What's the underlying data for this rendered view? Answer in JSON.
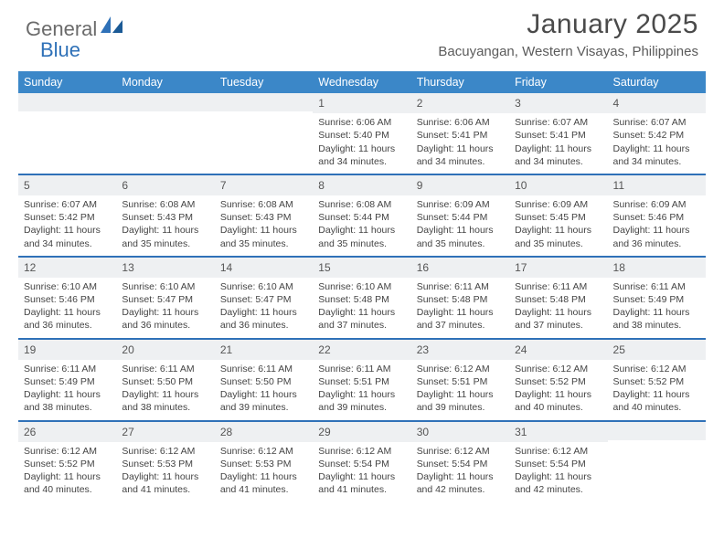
{
  "logo": {
    "part1": "General",
    "part2": "Blue"
  },
  "title": "January 2025",
  "location": "Bacuyangan, Western Visayas, Philippines",
  "colors": {
    "header_band": "#3b87c8",
    "week_divider": "#2f71b8",
    "daynum_band": "#eef0f2",
    "logo_gray": "#6b6b6b",
    "logo_blue": "#2f71b8"
  },
  "dow": [
    "Sunday",
    "Monday",
    "Tuesday",
    "Wednesday",
    "Thursday",
    "Friday",
    "Saturday"
  ],
  "weeks": [
    [
      {
        "n": "",
        "sr": "",
        "ss": "",
        "dl": ""
      },
      {
        "n": "",
        "sr": "",
        "ss": "",
        "dl": ""
      },
      {
        "n": "",
        "sr": "",
        "ss": "",
        "dl": ""
      },
      {
        "n": "1",
        "sr": "Sunrise: 6:06 AM",
        "ss": "Sunset: 5:40 PM",
        "dl": "Daylight: 11 hours and 34 minutes."
      },
      {
        "n": "2",
        "sr": "Sunrise: 6:06 AM",
        "ss": "Sunset: 5:41 PM",
        "dl": "Daylight: 11 hours and 34 minutes."
      },
      {
        "n": "3",
        "sr": "Sunrise: 6:07 AM",
        "ss": "Sunset: 5:41 PM",
        "dl": "Daylight: 11 hours and 34 minutes."
      },
      {
        "n": "4",
        "sr": "Sunrise: 6:07 AM",
        "ss": "Sunset: 5:42 PM",
        "dl": "Daylight: 11 hours and 34 minutes."
      }
    ],
    [
      {
        "n": "5",
        "sr": "Sunrise: 6:07 AM",
        "ss": "Sunset: 5:42 PM",
        "dl": "Daylight: 11 hours and 34 minutes."
      },
      {
        "n": "6",
        "sr": "Sunrise: 6:08 AM",
        "ss": "Sunset: 5:43 PM",
        "dl": "Daylight: 11 hours and 35 minutes."
      },
      {
        "n": "7",
        "sr": "Sunrise: 6:08 AM",
        "ss": "Sunset: 5:43 PM",
        "dl": "Daylight: 11 hours and 35 minutes."
      },
      {
        "n": "8",
        "sr": "Sunrise: 6:08 AM",
        "ss": "Sunset: 5:44 PM",
        "dl": "Daylight: 11 hours and 35 minutes."
      },
      {
        "n": "9",
        "sr": "Sunrise: 6:09 AM",
        "ss": "Sunset: 5:44 PM",
        "dl": "Daylight: 11 hours and 35 minutes."
      },
      {
        "n": "10",
        "sr": "Sunrise: 6:09 AM",
        "ss": "Sunset: 5:45 PM",
        "dl": "Daylight: 11 hours and 35 minutes."
      },
      {
        "n": "11",
        "sr": "Sunrise: 6:09 AM",
        "ss": "Sunset: 5:46 PM",
        "dl": "Daylight: 11 hours and 36 minutes."
      }
    ],
    [
      {
        "n": "12",
        "sr": "Sunrise: 6:10 AM",
        "ss": "Sunset: 5:46 PM",
        "dl": "Daylight: 11 hours and 36 minutes."
      },
      {
        "n": "13",
        "sr": "Sunrise: 6:10 AM",
        "ss": "Sunset: 5:47 PM",
        "dl": "Daylight: 11 hours and 36 minutes."
      },
      {
        "n": "14",
        "sr": "Sunrise: 6:10 AM",
        "ss": "Sunset: 5:47 PM",
        "dl": "Daylight: 11 hours and 36 minutes."
      },
      {
        "n": "15",
        "sr": "Sunrise: 6:10 AM",
        "ss": "Sunset: 5:48 PM",
        "dl": "Daylight: 11 hours and 37 minutes."
      },
      {
        "n": "16",
        "sr": "Sunrise: 6:11 AM",
        "ss": "Sunset: 5:48 PM",
        "dl": "Daylight: 11 hours and 37 minutes."
      },
      {
        "n": "17",
        "sr": "Sunrise: 6:11 AM",
        "ss": "Sunset: 5:48 PM",
        "dl": "Daylight: 11 hours and 37 minutes."
      },
      {
        "n": "18",
        "sr": "Sunrise: 6:11 AM",
        "ss": "Sunset: 5:49 PM",
        "dl": "Daylight: 11 hours and 38 minutes."
      }
    ],
    [
      {
        "n": "19",
        "sr": "Sunrise: 6:11 AM",
        "ss": "Sunset: 5:49 PM",
        "dl": "Daylight: 11 hours and 38 minutes."
      },
      {
        "n": "20",
        "sr": "Sunrise: 6:11 AM",
        "ss": "Sunset: 5:50 PM",
        "dl": "Daylight: 11 hours and 38 minutes."
      },
      {
        "n": "21",
        "sr": "Sunrise: 6:11 AM",
        "ss": "Sunset: 5:50 PM",
        "dl": "Daylight: 11 hours and 39 minutes."
      },
      {
        "n": "22",
        "sr": "Sunrise: 6:11 AM",
        "ss": "Sunset: 5:51 PM",
        "dl": "Daylight: 11 hours and 39 minutes."
      },
      {
        "n": "23",
        "sr": "Sunrise: 6:12 AM",
        "ss": "Sunset: 5:51 PM",
        "dl": "Daylight: 11 hours and 39 minutes."
      },
      {
        "n": "24",
        "sr": "Sunrise: 6:12 AM",
        "ss": "Sunset: 5:52 PM",
        "dl": "Daylight: 11 hours and 40 minutes."
      },
      {
        "n": "25",
        "sr": "Sunrise: 6:12 AM",
        "ss": "Sunset: 5:52 PM",
        "dl": "Daylight: 11 hours and 40 minutes."
      }
    ],
    [
      {
        "n": "26",
        "sr": "Sunrise: 6:12 AM",
        "ss": "Sunset: 5:52 PM",
        "dl": "Daylight: 11 hours and 40 minutes."
      },
      {
        "n": "27",
        "sr": "Sunrise: 6:12 AM",
        "ss": "Sunset: 5:53 PM",
        "dl": "Daylight: 11 hours and 41 minutes."
      },
      {
        "n": "28",
        "sr": "Sunrise: 6:12 AM",
        "ss": "Sunset: 5:53 PM",
        "dl": "Daylight: 11 hours and 41 minutes."
      },
      {
        "n": "29",
        "sr": "Sunrise: 6:12 AM",
        "ss": "Sunset: 5:54 PM",
        "dl": "Daylight: 11 hours and 41 minutes."
      },
      {
        "n": "30",
        "sr": "Sunrise: 6:12 AM",
        "ss": "Sunset: 5:54 PM",
        "dl": "Daylight: 11 hours and 42 minutes."
      },
      {
        "n": "31",
        "sr": "Sunrise: 6:12 AM",
        "ss": "Sunset: 5:54 PM",
        "dl": "Daylight: 11 hours and 42 minutes."
      },
      {
        "n": "",
        "sr": "",
        "ss": "",
        "dl": ""
      }
    ]
  ]
}
